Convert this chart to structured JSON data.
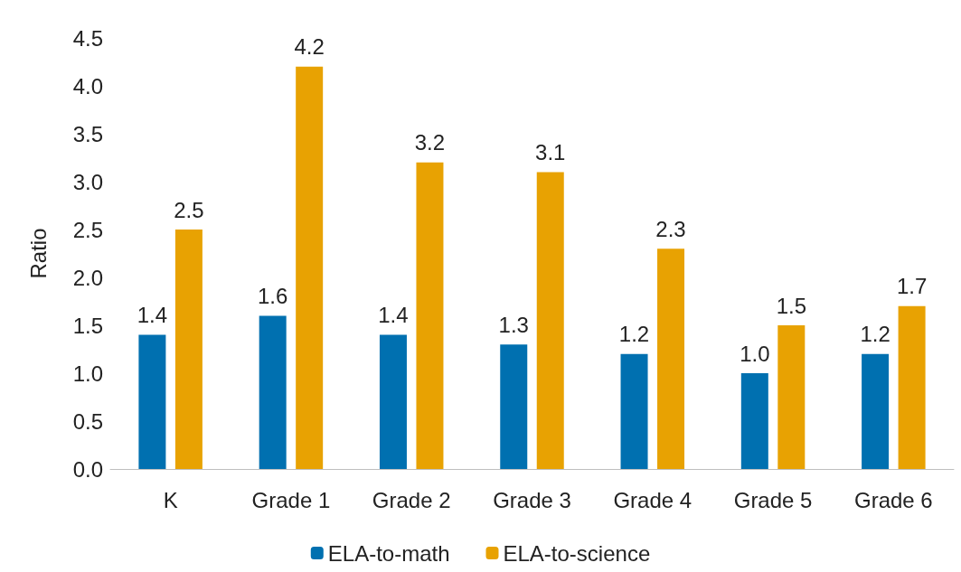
{
  "chart_data": {
    "type": "bar",
    "ylabel": "Ratio",
    "categories": [
      "K",
      "Grade 1",
      "Grade 2",
      "Grade 3",
      "Grade 4",
      "Grade 5",
      "Grade 6"
    ],
    "series": [
      {
        "name": "ELA-to-math",
        "color": "#0070b0",
        "values": [
          1.4,
          1.6,
          1.4,
          1.3,
          1.2,
          1.0,
          1.2
        ],
        "value_labels": [
          "1.4",
          "1.6",
          "1.4",
          "1.3",
          "1.2",
          "1.0",
          "1.2"
        ]
      },
      {
        "name": "ELA-to-science",
        "color": "#e8a202",
        "values": [
          2.5,
          4.2,
          3.2,
          3.1,
          2.3,
          1.5,
          1.7
        ],
        "value_labels": [
          "2.5",
          "4.2",
          "3.2",
          "3.1",
          "2.3",
          "1.5",
          "1.7"
        ]
      }
    ],
    "ylim": [
      0,
      4.5
    ],
    "yticks": [
      {
        "value": 0,
        "label": "0.0"
      },
      {
        "value": 0.5,
        "label": "0.5"
      },
      {
        "value": 1,
        "label": "1.0"
      },
      {
        "value": 1.5,
        "label": "1.5"
      },
      {
        "value": 2,
        "label": "2.0"
      },
      {
        "value": 2.5,
        "label": "2.5"
      },
      {
        "value": 3,
        "label": "3.0"
      },
      {
        "value": 3.5,
        "label": "3.5"
      },
      {
        "value": 4,
        "label": "4.0"
      },
      {
        "value": 4.5,
        "label": "4.5"
      }
    ],
    "grid": false,
    "legend": "bottom"
  }
}
